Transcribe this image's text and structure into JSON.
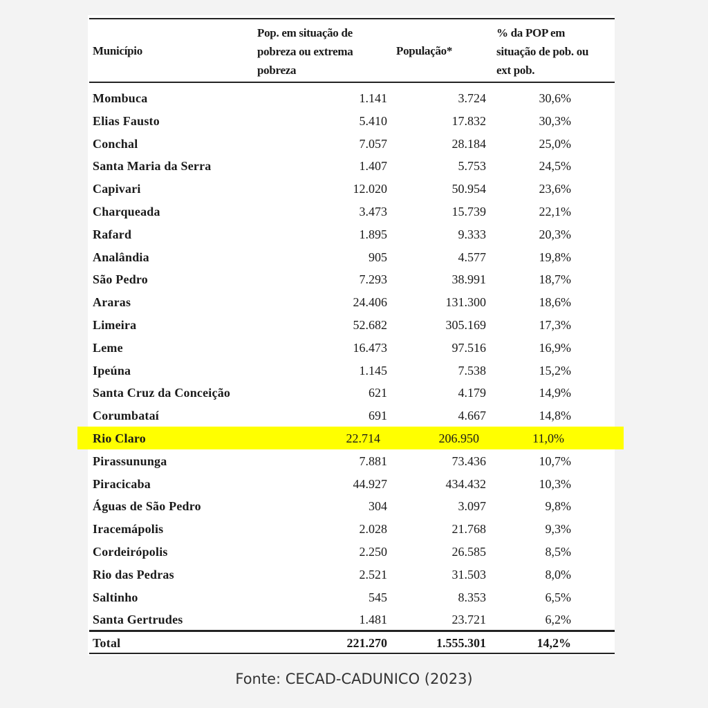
{
  "table": {
    "headers": {
      "municipio": "Município",
      "pobreza": [
        "Pop. em situação de",
        "pobreza ou extrema",
        "pobreza"
      ],
      "populacao": "População*",
      "percent": [
        "% da POP em",
        "situação de pob. ou",
        "ext pob."
      ]
    },
    "rows": [
      {
        "name": "Mombuca",
        "pobreza": "1.141",
        "populacao": "3.724",
        "percent": "30,6%"
      },
      {
        "name": "Elias Fausto",
        "pobreza": "5.410",
        "populacao": "17.832",
        "percent": "30,3%"
      },
      {
        "name": "Conchal",
        "pobreza": "7.057",
        "populacao": "28.184",
        "percent": "25,0%"
      },
      {
        "name": "Santa Maria da Serra",
        "pobreza": "1.407",
        "populacao": "5.753",
        "percent": "24,5%"
      },
      {
        "name": "Capivari",
        "pobreza": "12.020",
        "populacao": "50.954",
        "percent": "23,6%"
      },
      {
        "name": "Charqueada",
        "pobreza": "3.473",
        "populacao": "15.739",
        "percent": "22,1%"
      },
      {
        "name": "Rafard",
        "pobreza": "1.895",
        "populacao": "9.333",
        "percent": "20,3%"
      },
      {
        "name": "Analândia",
        "pobreza": "905",
        "populacao": "4.577",
        "percent": "19,8%"
      },
      {
        "name": "São Pedro",
        "pobreza": "7.293",
        "populacao": "38.991",
        "percent": "18,7%"
      },
      {
        "name": "Araras",
        "pobreza": "24.406",
        "populacao": "131.300",
        "percent": "18,6%"
      },
      {
        "name": "Limeira",
        "pobreza": "52.682",
        "populacao": "305.169",
        "percent": "17,3%"
      },
      {
        "name": "Leme",
        "pobreza": "16.473",
        "populacao": "97.516",
        "percent": "16,9%"
      },
      {
        "name": "Ipeúna",
        "pobreza": "1.145",
        "populacao": "7.538",
        "percent": "15,2%"
      },
      {
        "name": "Santa Cruz da Conceição",
        "pobreza": "621",
        "populacao": "4.179",
        "percent": "14,9%"
      },
      {
        "name": "Corumbataí",
        "pobreza": "691",
        "populacao": "4.667",
        "percent": "14,8%"
      },
      {
        "name": "Rio Claro",
        "pobreza": "22.714",
        "populacao": "206.950",
        "percent": "11,0%",
        "highlight": true
      },
      {
        "name": "Pirassununga",
        "pobreza": "7.881",
        "populacao": "73.436",
        "percent": "10,7%"
      },
      {
        "name": "Piracicaba",
        "pobreza": "44.927",
        "populacao": "434.432",
        "percent": "10,3%"
      },
      {
        "name": "Águas de São Pedro",
        "pobreza": "304",
        "populacao": "3.097",
        "percent": "9,8%"
      },
      {
        "name": "Iracemápolis",
        "pobreza": "2.028",
        "populacao": "21.768",
        "percent": "9,3%"
      },
      {
        "name": "Cordeirópolis",
        "pobreza": "2.250",
        "populacao": "26.585",
        "percent": "8,5%"
      },
      {
        "name": "Rio das Pedras",
        "pobreza": "2.521",
        "populacao": "31.503",
        "percent": "8,0%"
      },
      {
        "name": "Saltinho",
        "pobreza": "545",
        "populacao": "8.353",
        "percent": "6,5%"
      },
      {
        "name": "Santa Gertrudes",
        "pobreza": "1.481",
        "populacao": "23.721",
        "percent": "6,2%"
      }
    ],
    "total": {
      "name": "Total",
      "pobreza": "221.270",
      "populacao": "1.555.301",
      "percent": "14,2%"
    },
    "highlight_color": "#ffff00"
  },
  "caption": "Fonte: CECAD-CADUNICO (2023)"
}
